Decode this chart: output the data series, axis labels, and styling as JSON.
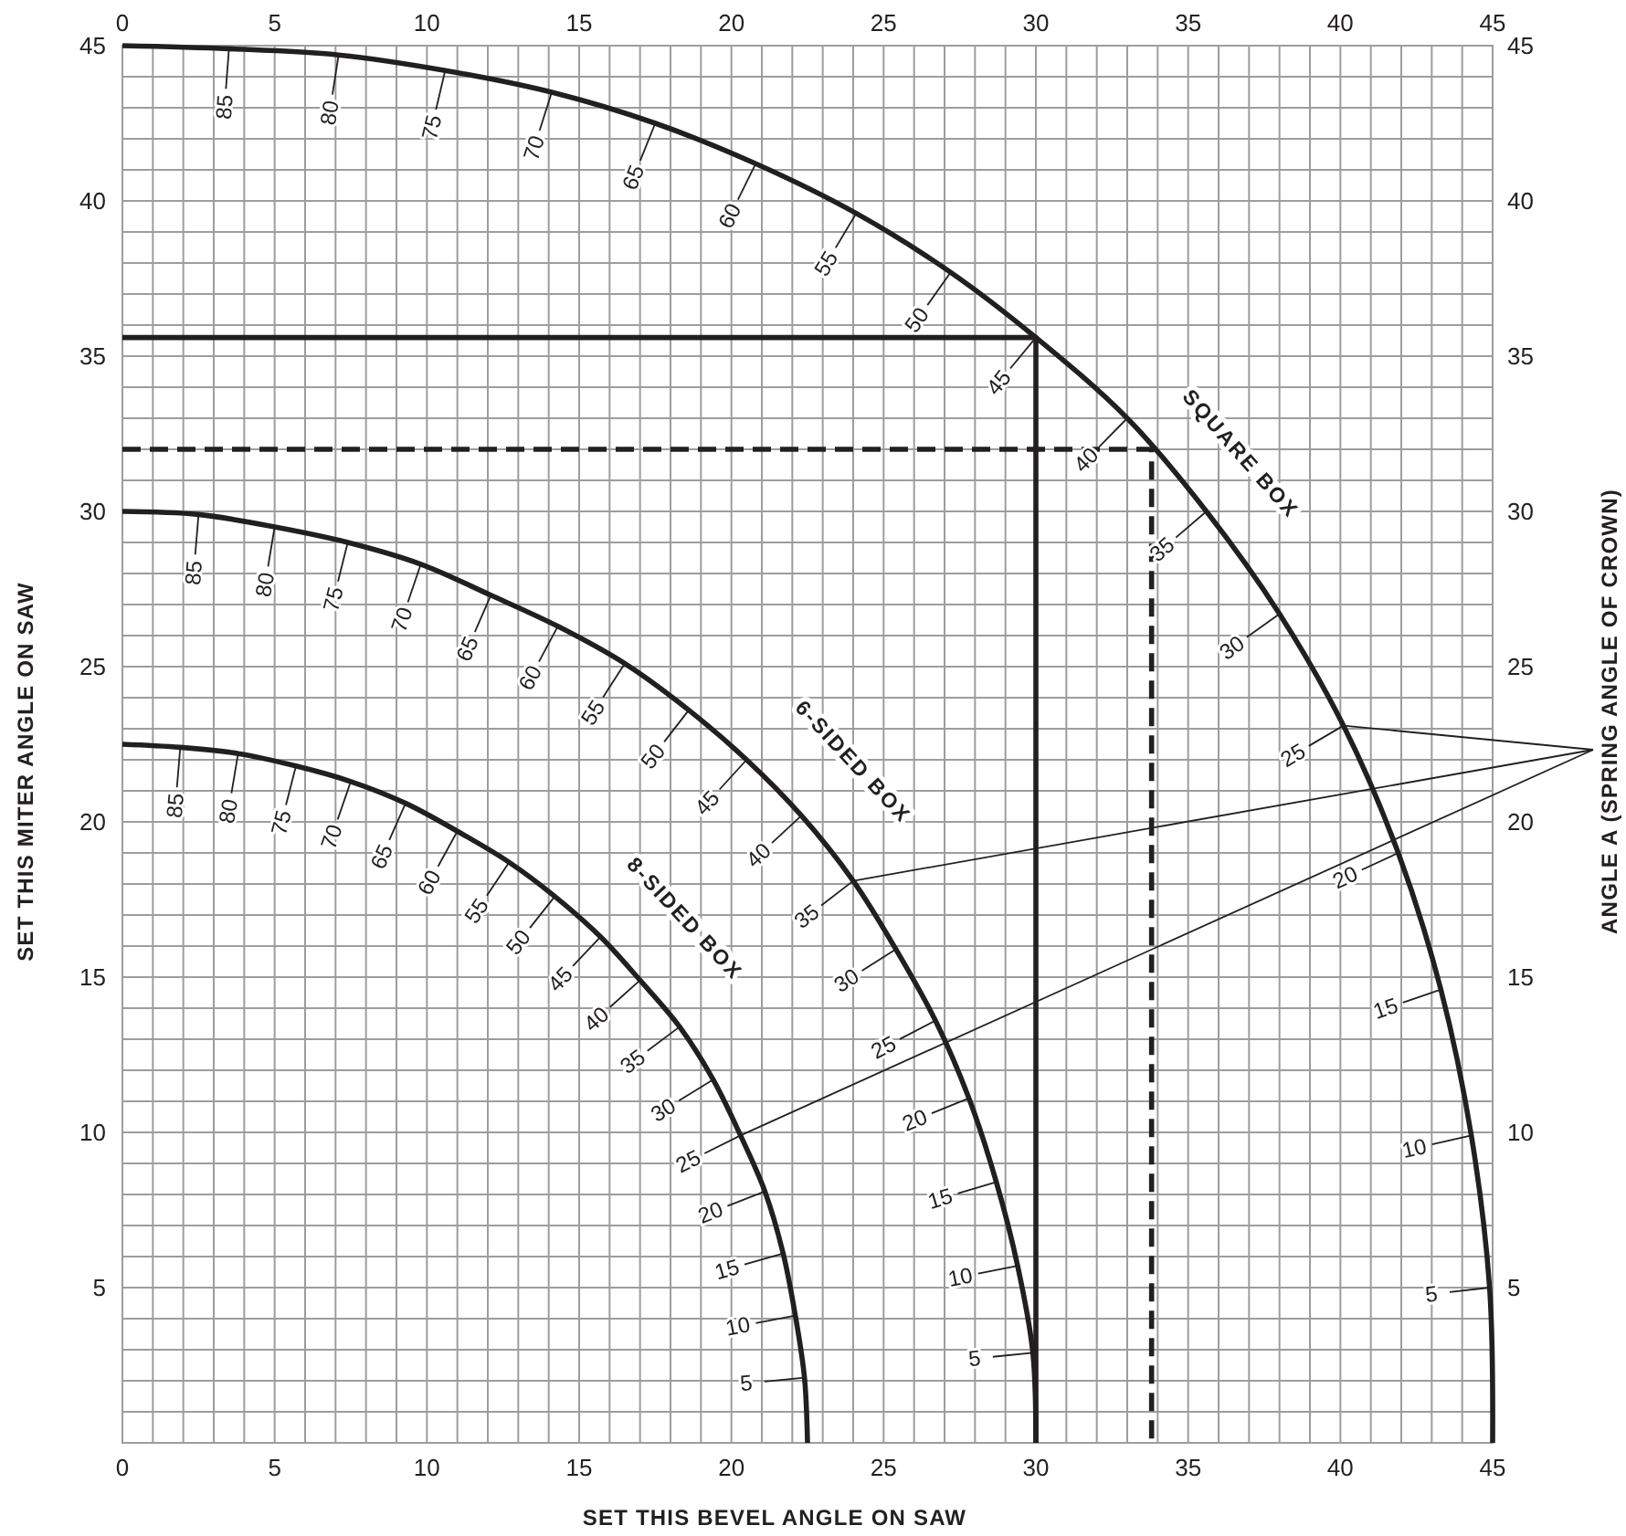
{
  "chart_data": {
    "type": "line",
    "xlabel": "SET THIS BEVEL ANGLE ON SAW",
    "ylabel": "SET THIS MITER ANGLE ON SAW",
    "y2label": "ANGLE A (SPRING ANGLE OF CROWN)",
    "xlim": [
      0,
      45
    ],
    "ylim": [
      0,
      45
    ],
    "x2lim": [
      0,
      45
    ],
    "y2lim": [
      0,
      45
    ],
    "xticks": [
      0,
      {
        "value": 1,
        "label": null
      },
      {
        "value": 2,
        "label": null
      },
      {
        "value": 3,
        "label": null
      },
      {
        "value": 4,
        "label": null
      },
      5,
      {
        "value": 6,
        "label": null
      },
      {
        "value": 7,
        "label": null
      },
      {
        "value": 8,
        "label": null
      },
      {
        "value": 9,
        "label": null
      },
      10,
      {
        "value": 11,
        "label": null
      },
      {
        "value": 12,
        "label": null
      },
      {
        "value": 13,
        "label": null
      },
      {
        "value": 14,
        "label": null
      },
      15,
      {
        "value": 16,
        "label": null
      },
      {
        "value": 17,
        "label": null
      },
      {
        "value": 18,
        "label": null
      },
      {
        "value": 19,
        "label": null
      },
      20,
      {
        "value": 21,
        "label": null
      },
      {
        "value": 22,
        "label": null
      },
      {
        "value": 23,
        "label": null
      },
      {
        "value": 24,
        "label": null
      },
      25,
      {
        "value": 26,
        "label": null
      },
      {
        "value": 27,
        "label": null
      },
      {
        "value": 28,
        "label": null
      },
      {
        "value": 29,
        "label": null
      },
      30,
      {
        "value": 31,
        "label": null
      },
      {
        "value": 32,
        "label": null
      },
      {
        "value": 33,
        "label": null
      },
      {
        "value": 34,
        "label": null
      },
      35,
      {
        "value": 36,
        "label": null
      },
      {
        "value": 37,
        "label": null
      },
      {
        "value": 38,
        "label": null
      },
      {
        "value": 39,
        "label": null
      },
      40,
      {
        "value": 41,
        "label": null
      },
      {
        "value": 42,
        "label": null
      },
      {
        "value": 43,
        "label": null
      },
      {
        "value": 44,
        "label": null
      },
      45
    ],
    "yticks": [
      {
        "value": 0,
        "label": null
      },
      {
        "value": 1,
        "label": null
      },
      {
        "value": 2,
        "label": null
      },
      {
        "value": 3,
        "label": null
      },
      {
        "value": 4,
        "label": null
      },
      5,
      {
        "value": 6,
        "label": null
      },
      {
        "value": 7,
        "label": null
      },
      {
        "value": 8,
        "label": null
      },
      {
        "value": 9,
        "label": null
      },
      10,
      {
        "value": 11,
        "label": null
      },
      {
        "value": 12,
        "label": null
      },
      {
        "value": 13,
        "label": null
      },
      {
        "value": 14,
        "label": null
      },
      15,
      {
        "value": 16,
        "label": null
      },
      {
        "value": 17,
        "label": null
      },
      {
        "value": 18,
        "label": null
      },
      {
        "value": 19,
        "label": null
      },
      20,
      {
        "value": 21,
        "label": null
      },
      {
        "value": 22,
        "label": null
      },
      {
        "value": 23,
        "label": null
      },
      {
        "value": 24,
        "label": null
      },
      25,
      {
        "value": 26,
        "label": null
      },
      {
        "value": 27,
        "label": null
      },
      {
        "value": 28,
        "label": null
      },
      {
        "value": 29,
        "label": null
      },
      30,
      {
        "value": 31,
        "label": null
      },
      {
        "value": 32,
        "label": null
      },
      {
        "value": 33,
        "label": null
      },
      {
        "value": 34,
        "label": null
      },
      35,
      {
        "value": 36,
        "label": null
      },
      {
        "value": 37,
        "label": null
      },
      {
        "value": 38,
        "label": null
      },
      {
        "value": 39,
        "label": null
      },
      40,
      {
        "value": 41,
        "label": null
      },
      {
        "value": 42,
        "label": null
      },
      {
        "value": 43,
        "label": null
      },
      {
        "value": 44,
        "label": null
      },
      45
    ],
    "x2ticks": [
      0,
      5,
      10,
      15,
      20,
      25,
      30,
      35,
      40,
      45
    ],
    "y2ticks": [
      5,
      10,
      15,
      20,
      25,
      30,
      35,
      40,
      45
    ],
    "grid": true,
    "line_style": "solid",
    "series": [
      {
        "name": "SQUARE BOX",
        "color": "#231f20",
        "x": [
          0,
          3.5,
          7.1,
          10.6,
          14.1,
          17.5,
          20.8,
          24.1,
          27.2,
          30.0,
          33.0,
          35.6,
          38.0,
          40.1,
          41.9,
          43.3,
          44.3,
          44.9,
          45
        ],
        "values": [
          45,
          44.9,
          44.7,
          44.2,
          43.5,
          42.5,
          41.2,
          39.6,
          37.7,
          35.6,
          33.0,
          30.0,
          26.7,
          23.1,
          19.0,
          14.6,
          9.9,
          5.0,
          0
        ]
      },
      {
        "name": "6-SIDED BOX",
        "color": "#231f20",
        "x": [
          0,
          2.5,
          5.0,
          7.4,
          9.8,
          12.1,
          14.3,
          16.5,
          18.6,
          20.5,
          22.3,
          24.0,
          25.4,
          26.7,
          27.8,
          28.7,
          29.4,
          29.9,
          30
        ],
        "values": [
          30,
          29.9,
          29.5,
          29.0,
          28.3,
          27.3,
          26.3,
          25.1,
          23.6,
          22.0,
          20.2,
          18.1,
          15.9,
          13.6,
          11.1,
          8.4,
          5.7,
          2.9,
          0
        ]
      },
      {
        "name": "8-SIDED BOX",
        "color": "#231f20",
        "x": [
          0,
          1.9,
          3.8,
          5.7,
          7.5,
          9.3,
          11.0,
          12.7,
          14.2,
          15.7,
          17.0,
          18.3,
          19.4,
          20.3,
          21.1,
          21.7,
          22.1,
          22.4,
          22.5
        ],
        "values": [
          22.5,
          22.4,
          22.2,
          21.8,
          21.3,
          20.6,
          19.7,
          18.7,
          17.6,
          16.3,
          14.9,
          13.4,
          11.7,
          9.9,
          8.1,
          6.1,
          4.1,
          2.1,
          0
        ]
      },
      {
        "type": "step",
        "color": "#231f20",
        "x": [
          0,
          30.0
        ],
        "values": [
          35.6,
          0
        ]
      },
      {
        "type": "step",
        "color": "#231f20",
        "line_style": "dashed",
        "x": [
          0,
          33.8
        ],
        "values": [
          32.0,
          0
        ]
      }
    ],
    "annotations": [
      {
        "text": "85",
        "x": 3.5,
        "y": 44.9
      },
      {
        "text": "80",
        "x": 7.1,
        "y": 44.7
      },
      {
        "text": "75",
        "x": 10.6,
        "y": 44.2
      },
      {
        "text": "70",
        "x": 14.1,
        "y": 43.5
      },
      {
        "text": "65",
        "x": 17.5,
        "y": 42.5
      },
      {
        "text": "60",
        "x": 20.8,
        "y": 41.2
      },
      {
        "text": "55",
        "x": 24.1,
        "y": 39.6
      },
      {
        "text": "50",
        "x": 27.2,
        "y": 37.7
      },
      {
        "text": "45",
        "x": 30.0,
        "y": 35.6
      },
      {
        "text": "40",
        "x": 33.0,
        "y": 33.0
      },
      {
        "text": "35",
        "x": 35.6,
        "y": 30.0
      },
      {
        "text": "30",
        "x": 38.0,
        "y": 26.7
      },
      {
        "text": "25",
        "x": 40.1,
        "y": 23.1
      },
      {
        "text": "20",
        "x": 41.9,
        "y": 19.0
      },
      {
        "text": "15",
        "x": 43.3,
        "y": 14.6
      },
      {
        "text": "10",
        "x": 44.3,
        "y": 9.9
      },
      {
        "text": "5",
        "x": 44.9,
        "y": 5.0
      },
      {
        "text": "85",
        "x": 2.5,
        "y": 29.9
      },
      {
        "text": "80",
        "x": 5.0,
        "y": 29.5
      },
      {
        "text": "75",
        "x": 7.4,
        "y": 29.0
      },
      {
        "text": "70",
        "x": 9.8,
        "y": 28.3
      },
      {
        "text": "65",
        "x": 12.1,
        "y": 27.3
      },
      {
        "text": "60",
        "x": 14.3,
        "y": 26.3
      },
      {
        "text": "55",
        "x": 16.5,
        "y": 25.1
      },
      {
        "text": "50",
        "x": 18.6,
        "y": 23.6
      },
      {
        "text": "45",
        "x": 20.5,
        "y": 22.0
      },
      {
        "text": "40",
        "x": 22.3,
        "y": 20.2
      },
      {
        "text": "35",
        "x": 24.0,
        "y": 18.1
      },
      {
        "text": "30",
        "x": 25.4,
        "y": 15.9
      },
      {
        "text": "25",
        "x": 26.7,
        "y": 13.6
      },
      {
        "text": "20",
        "x": 27.8,
        "y": 11.1
      },
      {
        "text": "15",
        "x": 28.7,
        "y": 8.4
      },
      {
        "text": "10",
        "x": 29.4,
        "y": 5.7
      },
      {
        "text": "5",
        "x": 29.9,
        "y": 2.9
      },
      {
        "text": "85",
        "x": 1.9,
        "y": 22.4
      },
      {
        "text": "80",
        "x": 3.8,
        "y": 22.2
      },
      {
        "text": "75",
        "x": 5.7,
        "y": 21.8
      },
      {
        "text": "70",
        "x": 7.5,
        "y": 21.3
      },
      {
        "text": "65",
        "x": 9.3,
        "y": 20.6
      },
      {
        "text": "60",
        "x": 11.0,
        "y": 19.7
      },
      {
        "text": "55",
        "x": 12.7,
        "y": 18.7
      },
      {
        "text": "50",
        "x": 14.2,
        "y": 17.6
      },
      {
        "text": "45",
        "x": 15.7,
        "y": 16.3
      },
      {
        "text": "40",
        "x": 17.0,
        "y": 14.9
      },
      {
        "text": "35",
        "x": 18.3,
        "y": 13.4
      },
      {
        "text": "30",
        "x": 19.4,
        "y": 11.7
      },
      {
        "text": "25",
        "x": 20.3,
        "y": 9.9
      },
      {
        "text": "20",
        "x": 21.1,
        "y": 8.1
      },
      {
        "text": "15",
        "x": 21.7,
        "y": 6.1
      },
      {
        "text": "10",
        "x": 22.1,
        "y": 4.1
      },
      {
        "text": "5",
        "x": 22.4,
        "y": 2.1
      }
    ]
  }
}
